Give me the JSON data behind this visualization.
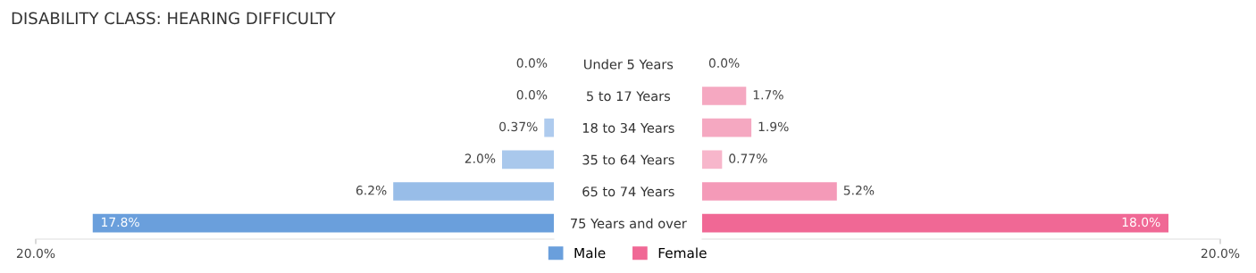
{
  "chart_data": [
    {
      "type": "bar",
      "orientation": "horizontal",
      "title": "DISABILITY CLASS: HEARING DIFFICULTY",
      "categories": [
        "Under 5 Years",
        "5 to 17 Years",
        "18 to 34 Years",
        "35 to 64 Years",
        "65 to 74 Years",
        "75 Years and over"
      ],
      "xlim": [
        20,
        0
      ],
      "xticks": [
        {
          "value": 20,
          "label": "20.0%"
        }
      ],
      "grid": false,
      "legend": "bottom",
      "series": [
        {
          "name": "Male",
          "color": "#6a9fdc",
          "colors": [
            "#b3cff0",
            "#b3cff0",
            "#aecbee",
            "#a9c8ec",
            "#98bde8",
            "#6a9fdc"
          ],
          "values": [
            0.0,
            0.0,
            0.37,
            2.0,
            6.2,
            17.8
          ],
          "value_labels": [
            "0.0%",
            "0.0%",
            "0.37%",
            "2.0%",
            "6.2%",
            "17.8%"
          ]
        }
      ]
    },
    {
      "type": "bar",
      "orientation": "horizontal",
      "xlim": [
        0,
        20
      ],
      "xticks": [
        {
          "value": 20,
          "label": "20.0%"
        }
      ],
      "grid": false,
      "legend": "bottom",
      "series": [
        {
          "name": "Female",
          "color": "#f06895",
          "colors": [
            "#f7b6cb",
            "#f5a8c1",
            "#f5a8c1",
            "#f7b6cb",
            "#f49ab8",
            "#f06895"
          ],
          "values": [
            0.0,
            1.7,
            1.9,
            0.77,
            5.2,
            18.0
          ],
          "value_labels": [
            "0.0%",
            "1.7%",
            "1.9%",
            "0.77%",
            "5.2%",
            "18.0%"
          ]
        }
      ]
    }
  ]
}
